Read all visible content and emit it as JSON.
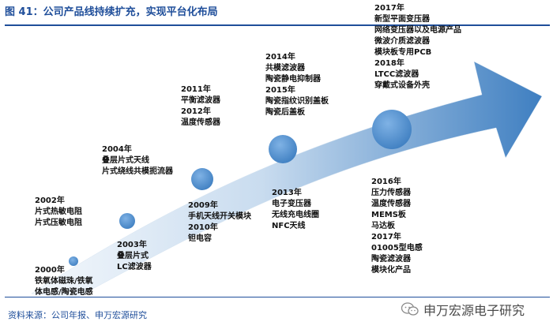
{
  "header": {
    "title": "图 41：公司产品线持续扩充，实现平台化布局"
  },
  "source": "资料来源：公司年报、申万宏源研究",
  "watermark": {
    "text": "申万宏源电子研究",
    "icon": "wechat-icon"
  },
  "colors": {
    "title": "#1f4e9a",
    "arrow_light": "#eef5fb",
    "arrow_dark": "#4f8fcc",
    "circle": "#5b9bd5"
  },
  "milestones": [
    {
      "lines": [
        "2000年",
        "铁氧体磁珠/铁氧",
        "体电感/陶瓷电感"
      ]
    },
    {
      "lines": [
        "2002年",
        "片式热敏电阻",
        "片式压敏电阻"
      ]
    },
    {
      "lines": [
        "2003年",
        "叠层片式",
        "LC滤波器"
      ]
    },
    {
      "lines": [
        "2004年",
        "叠层片式天线",
        "片式绕线共模扼流器"
      ]
    },
    {
      "lines": [
        "2009年",
        "手机天线开关模块",
        "2010年",
        "钽电容"
      ]
    },
    {
      "lines": [
        "2011年",
        "平衡滤波器",
        "2012年",
        "温度传感器"
      ]
    },
    {
      "lines": [
        "2013年",
        "电子变压器",
        "无线充电线圈",
        "NFC天线"
      ]
    },
    {
      "lines": [
        "2014年",
        "共模滤波器",
        "陶瓷静电抑制器",
        "2015年",
        "陶瓷指纹识别盖板",
        "陶瓷后盖板"
      ]
    },
    {
      "lines": [
        "2017年",
        "新型平面变压器",
        "网络变压器以及电源产品",
        "微波介质滤波器",
        "模块板专用PCB",
        "2018年",
        "LTCC滤波器",
        "穿戴式设备外壳"
      ]
    },
    {
      "lines": [
        "2016年",
        "压力传感器",
        "温度传感器",
        "MEMS板",
        "马达板",
        "2017年",
        "01005型电感",
        "陶瓷滤波器",
        "模块化产品"
      ]
    }
  ]
}
